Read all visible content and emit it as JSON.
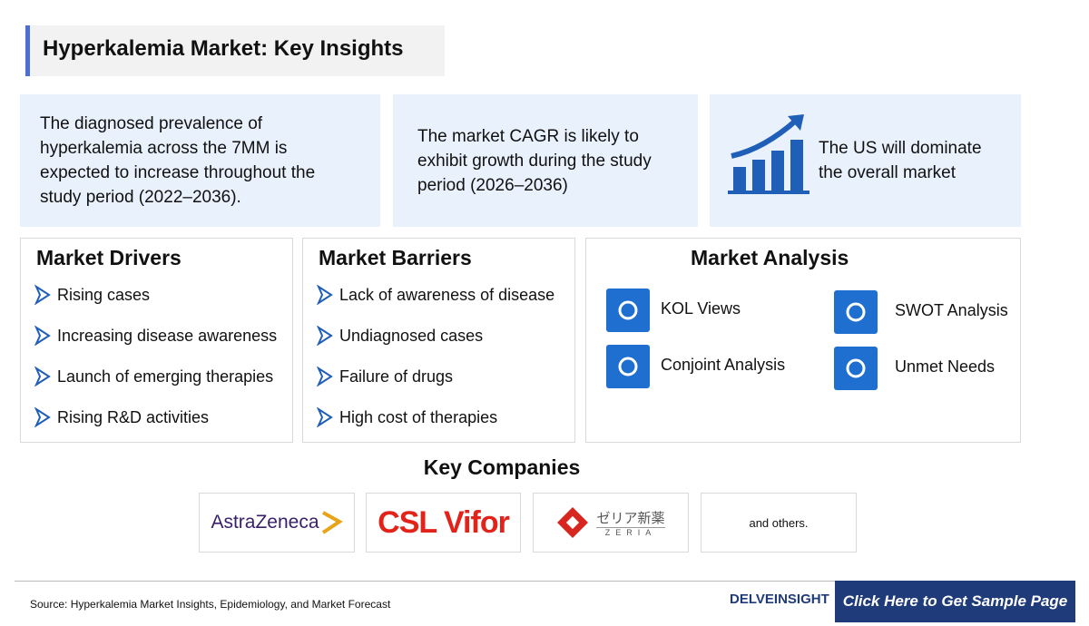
{
  "header": {
    "title": "Hyperkalemia Market: Key Insights"
  },
  "insights": [
    "The diagnosed prevalence of hyperkalemia across the 7MM is expected to increase throughout the study period (2022–2036).",
    "The market CAGR is likely to exhibit growth during the study period (2026–2036)",
    "The US will dominate the overall market"
  ],
  "drivers": {
    "title": "Market Drivers",
    "items": [
      "Rising cases",
      "Increasing disease awareness",
      "Launch of emerging therapies",
      "Rising R&D activities"
    ]
  },
  "barriers": {
    "title": "Market Barriers",
    "items": [
      "Lack of awareness of disease",
      "Undiagnosed cases",
      "Failure of drugs",
      "High cost of therapies"
    ]
  },
  "analysis": {
    "title": "Market Analysis",
    "items": [
      "KOL Views",
      "Conjoint Analysis",
      "SWOT Analysis",
      "Unmet Needs"
    ]
  },
  "companies": {
    "title": "Key Companies",
    "logos": [
      "AstraZeneca",
      "CSL Vifor",
      "ゼリア新薬",
      "ZERIA",
      "and others."
    ]
  },
  "footer": {
    "source": "Source: Hyperkalemia Market Insights, Epidemiology, and Market Forecast",
    "brand": "DELVEINSIGHT",
    "cta": "Click Here to Get Sample Page"
  }
}
